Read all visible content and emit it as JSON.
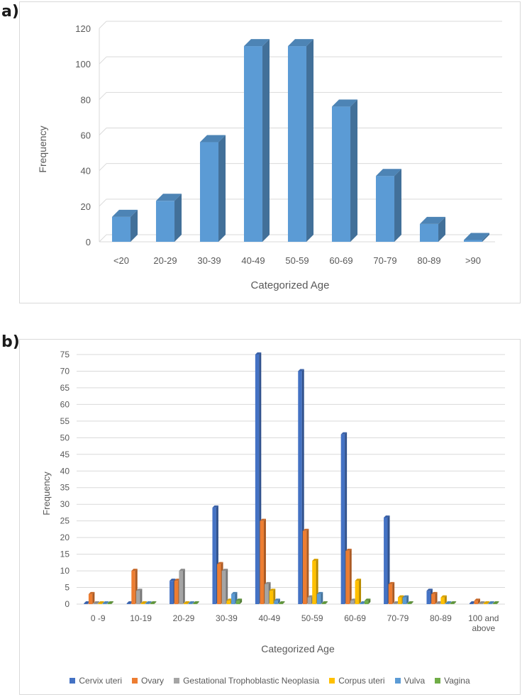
{
  "panels": {
    "a": {
      "label": "a)"
    },
    "b": {
      "label": "b)"
    }
  },
  "chart_data": [
    {
      "type": "bar",
      "style": "3d-columns",
      "color": "#5B9BD5",
      "categories": [
        "<20",
        "20-29",
        "30-39",
        "40-49",
        "50-59",
        "60-69",
        "70-79",
        "80-89",
        ">90"
      ],
      "values": [
        14,
        23,
        56,
        110,
        110,
        76,
        37,
        10,
        1
      ],
      "xlabel": "Categorized Age",
      "ylabel": "Frequency",
      "ylim": [
        0,
        120
      ],
      "yticks": [
        0,
        20,
        40,
        60,
        80,
        100,
        120
      ],
      "grid": true
    },
    {
      "type": "bar",
      "style": "3d-clustered-columns",
      "categories": [
        "0 -9",
        "10-19",
        "20-29",
        "30-39",
        "40-49",
        "50-59",
        "60-69",
        "70-79",
        "80-89",
        "100 and above"
      ],
      "series": [
        {
          "name": "Cervix uteri",
          "color": "#4472C4",
          "values": [
            0,
            0,
            7,
            29,
            75,
            70,
            51,
            26,
            4,
            0
          ]
        },
        {
          "name": "Ovary",
          "color": "#ED7D31",
          "values": [
            3,
            10,
            7,
            12,
            25,
            22,
            16,
            6,
            3,
            1
          ]
        },
        {
          "name": "Gestational Trophoblastic Neoplasia",
          "color": "#A5A5A5",
          "values": [
            0,
            4,
            10,
            10,
            6,
            2,
            1,
            0,
            0,
            0
          ]
        },
        {
          "name": "Corpus uteri",
          "color": "#FFC000",
          "values": [
            0,
            0,
            0,
            1,
            4,
            13,
            7,
            2,
            2,
            0
          ]
        },
        {
          "name": "Vulva",
          "color": "#5B9BD5",
          "values": [
            0,
            0,
            0,
            3,
            1,
            3,
            0,
            2,
            0,
            0
          ]
        },
        {
          "name": "Vagina",
          "color": "#70AD47",
          "values": [
            0,
            0,
            0,
            1,
            0,
            0,
            1,
            0,
            0,
            0
          ]
        }
      ],
      "xlabel": "Categorized Age",
      "ylabel": "Frequency",
      "ylim": [
        0,
        75
      ],
      "yticks": [
        0,
        5,
        10,
        15,
        20,
        25,
        30,
        35,
        40,
        45,
        50,
        55,
        60,
        65,
        70,
        75
      ],
      "grid": true,
      "legend": "bottom"
    }
  ]
}
